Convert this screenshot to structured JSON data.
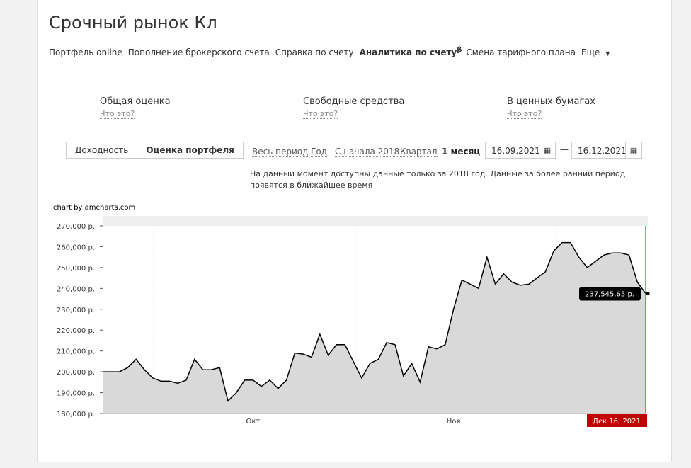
{
  "header": {
    "title": "Срочный рынок Кл"
  },
  "nav": [
    "Портфель online",
    "Пополнение брокерского счета",
    "Справка по счету",
    "Аналитика по счету",
    "β",
    "Смена тарифного плана",
    "Еще"
  ],
  "summary": [
    {
      "label": "Общая оценка",
      "help": "Что это?"
    },
    {
      "label": "Свободные средства",
      "help": "Что это?"
    },
    {
      "label": "В ценных бумагах",
      "help": "Что это?"
    }
  ],
  "tabs": [
    "Доходность",
    "Оценка портфеля"
  ],
  "periods": [
    "Весь период",
    "Год",
    "С начала 2018",
    "Квартал",
    "1 месяц"
  ],
  "dates": {
    "from": "16.09.2021",
    "separator": "—",
    "to": "16.12.2021"
  },
  "notice": "На данный момент доступны данные только за 2018 год. Данные за более ранний период появятся в ближайшее время",
  "chart_data": {
    "type": "area",
    "credit": "chart by amcharts.com",
    "categories": [
      null,
      null,
      null,
      null,
      null,
      null,
      null,
      null,
      null,
      null,
      null,
      null,
      null,
      null,
      null,
      null,
      null,
      null,
      "Окт",
      null,
      null,
      null,
      null,
      null,
      null,
      null,
      null,
      null,
      null,
      null,
      null,
      null,
      null,
      null,
      null,
      null,
      null,
      null,
      null,
      null,
      null,
      null,
      "Ноя",
      null,
      null,
      null,
      null,
      null,
      null,
      null,
      null,
      null,
      null,
      null,
      null,
      null,
      null,
      null,
      null,
      null,
      null,
      null,
      null,
      null,
      null,
      null
    ],
    "series": [
      {
        "color": "#000000",
        "fill": "#d9d9d9",
        "values": [
          200000,
          200000,
          200000,
          202000,
          206000,
          201000,
          197000,
          195500,
          195500,
          194500,
          196000,
          206000,
          201000,
          201000,
          202000,
          186000,
          190000,
          196000,
          196000,
          193000,
          196000,
          192000,
          196000,
          209000,
          208500,
          207000,
          218000,
          208000,
          213000,
          213000,
          205000,
          197000,
          204000,
          206000,
          214000,
          213000,
          198000,
          204000,
          195000,
          212000,
          211000,
          213000,
          230000,
          244000,
          242000,
          240000,
          255000,
          242000,
          247000,
          243000,
          241500,
          242000,
          245000,
          248000,
          258000,
          262000,
          262000,
          255000,
          250000,
          253000,
          256000,
          257000,
          257000,
          256000,
          243000,
          237545.65
        ]
      }
    ],
    "ylim": [
      180000,
      270000
    ],
    "yticks": [
      {
        "value": 180000,
        "label": "180,000 р."
      },
      {
        "value": 190000,
        "label": "190,000 р."
      },
      {
        "value": 200000,
        "label": "200,000 р."
      },
      {
        "value": 210000,
        "label": "210,000 р."
      },
      {
        "value": 220000,
        "label": "220,000 р."
      },
      {
        "value": 230000,
        "label": "230,000 р."
      },
      {
        "value": 240000,
        "label": "240,000 р."
      },
      {
        "value": 250000,
        "label": "250,000 р."
      },
      {
        "value": 260000,
        "label": "260,000 р."
      },
      {
        "value": 270000,
        "label": "270,000 р."
      }
    ],
    "tooltip": {
      "value": 237545.65,
      "label": "237,545.65 р."
    },
    "cursor_label": "Дек 16, 2021",
    "cursor_color": "#c00000"
  }
}
